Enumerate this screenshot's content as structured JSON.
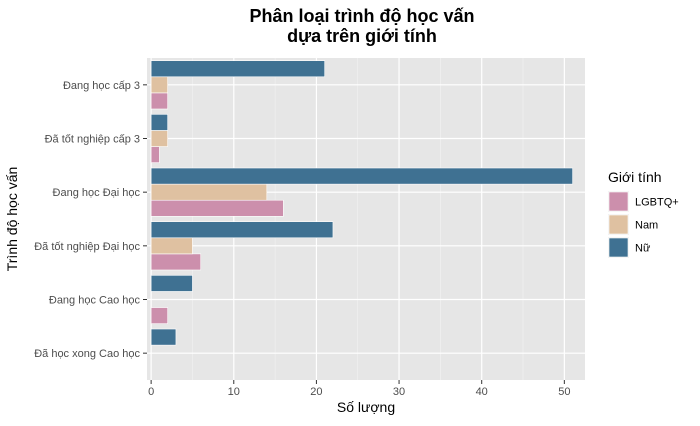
{
  "chart_data": {
    "type": "bar",
    "orientation": "horizontal",
    "title_line1": "Phân loại trình độ học vấn",
    "title_line2": "dựa trên giới tính",
    "xlabel": "Số lượng",
    "ylabel": "Trình độ học vấn",
    "xlim": [
      -0.5,
      52.5
    ],
    "xticks": [
      0,
      10,
      20,
      30,
      40,
      50
    ],
    "grid": true,
    "legend_title": "Giới tính",
    "legend_position": "right",
    "categories": [
      "Đã học xong Cao học",
      "Đang học Cao học",
      "Đã tốt nghiệp Đại học",
      "Đang học Đại học",
      "Đã tốt nghiệp cấp 3",
      "Đang học cấp 3"
    ],
    "series": [
      {
        "name": "LGBTQ+",
        "color": "#cc8fac",
        "values": [
          null,
          2,
          6,
          16,
          1,
          2
        ]
      },
      {
        "name": "Nam",
        "color": "#dfc1a1",
        "values": [
          null,
          null,
          5,
          14,
          2,
          2
        ]
      },
      {
        "name": "Nữ",
        "color": "#3f7192",
        "values": [
          3,
          5,
          22,
          51,
          2,
          21
        ]
      }
    ],
    "panel_background": "#e6e6e6"
  }
}
